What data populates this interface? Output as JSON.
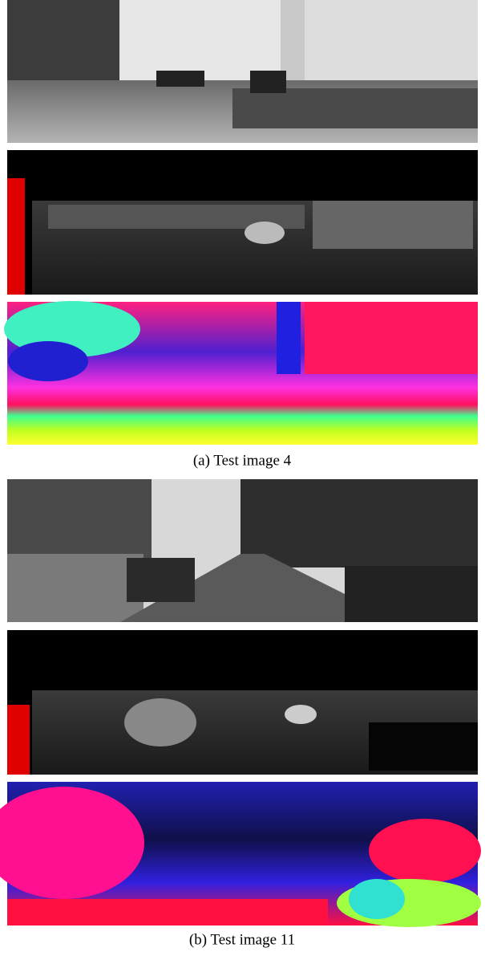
{
  "subfigures": [
    {
      "caption": "(a) Test image 4"
    },
    {
      "caption": "(b) Test image 11"
    }
  ]
}
